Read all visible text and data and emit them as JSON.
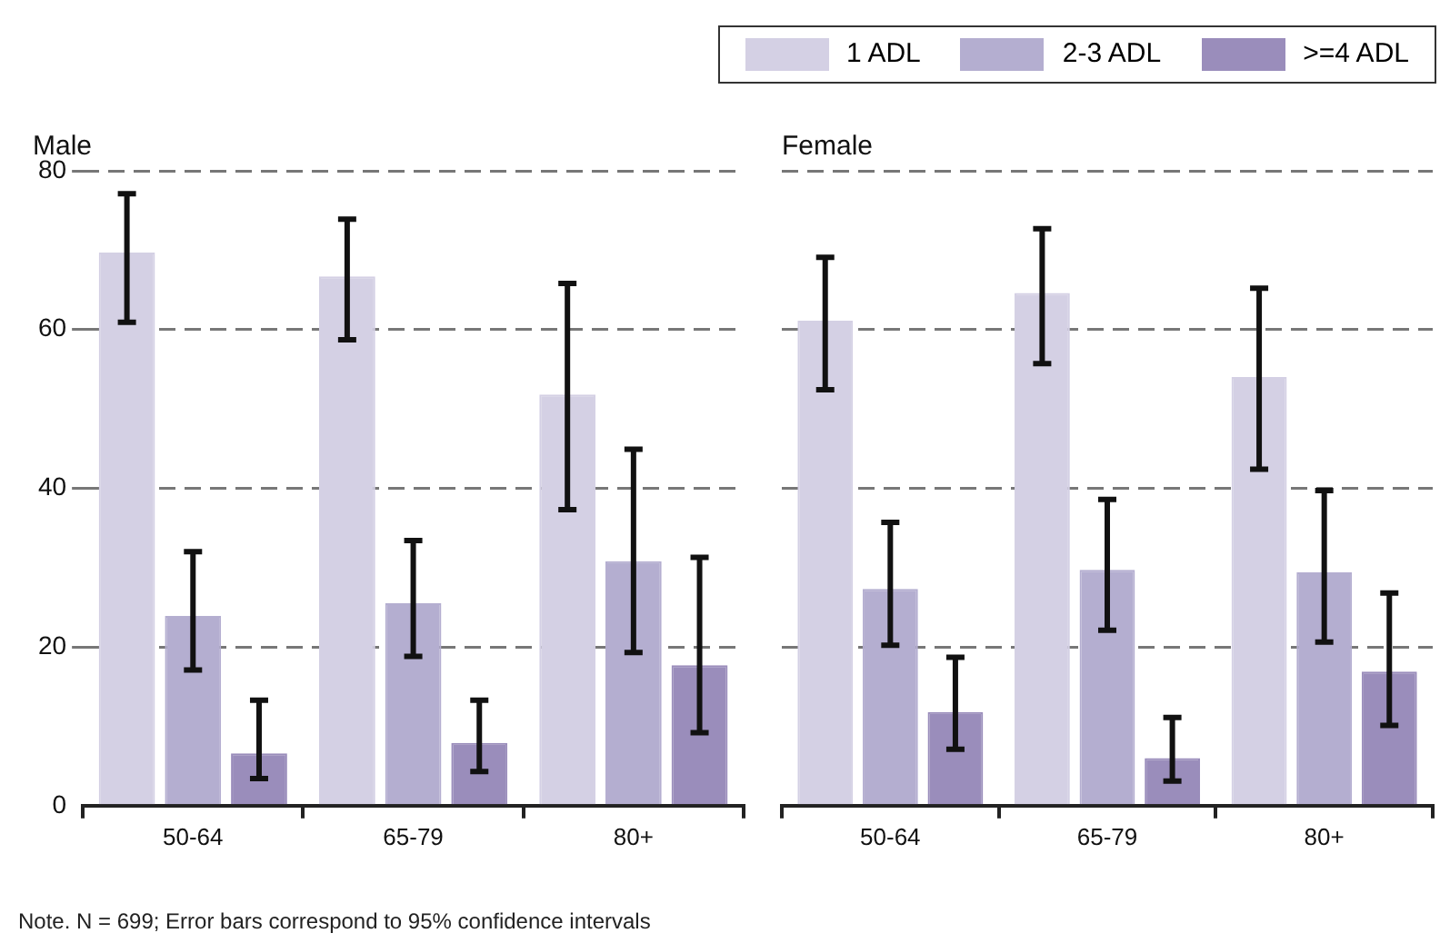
{
  "chart_data": [
    {
      "type": "bar",
      "title": "Male",
      "categories": [
        "50-64",
        "65-79",
        "80+"
      ],
      "series": [
        {
          "color": "#d4d0e4",
          "values": [
            69.7,
            66.7,
            51.8
          ],
          "errors": [
            [
              60.9,
              77.1
            ],
            [
              58.7,
              73.9
            ],
            [
              37.3,
              65.8
            ]
          ]
        },
        {
          "color": "#b4aed0",
          "values": [
            23.9,
            25.5,
            30.8
          ],
          "errors": [
            [
              17.1,
              32.0
            ],
            [
              18.8,
              33.4
            ],
            [
              19.3,
              44.9
            ]
          ]
        },
        {
          "color": "#9a8dbb",
          "values": [
            6.6,
            7.9,
            17.7
          ],
          "errors": [
            [
              3.4,
              13.3
            ],
            [
              4.3,
              13.3
            ],
            [
              9.2,
              31.3
            ]
          ]
        }
      ],
      "ylim": [
        0,
        80
      ],
      "yticks": [
        0,
        20,
        40,
        60,
        80
      ],
      "grid": "y",
      "line_style": "dashed"
    },
    {
      "type": "bar",
      "title": "Female",
      "categories": [
        "50-64",
        "65-79",
        "80+"
      ],
      "series": [
        {
          "name": "1 ADL",
          "color": "#d4d0e4",
          "values": [
            61.1,
            64.6,
            54.0
          ],
          "errors": [
            [
              52.4,
              69.1
            ],
            [
              55.7,
              72.7
            ],
            [
              42.4,
              65.2
            ]
          ]
        },
        {
          "name": "2-3 ADL",
          "color": "#b4aed0",
          "values": [
            27.3,
            29.7,
            29.4
          ],
          "errors": [
            [
              20.2,
              35.7
            ],
            [
              22.1,
              38.6
            ],
            [
              20.6,
              39.7
            ]
          ]
        },
        {
          "name": ">=4 ADL",
          "color": "#9a8dbb",
          "values": [
            11.8,
            6.0,
            16.9
          ],
          "errors": [
            [
              7.1,
              18.7
            ],
            [
              3.1,
              11.1
            ],
            [
              10.1,
              26.8
            ]
          ]
        }
      ],
      "ylim": [
        0,
        80
      ],
      "yticks": [
        0,
        20,
        40,
        60,
        80
      ],
      "grid": "y",
      "legend": "top right",
      "tick_labels": "x",
      "line_style": "dashed",
      "annotations": [
        "Note. N = 699; Error bars correspond to 95% confidence intervals"
      ]
    }
  ]
}
